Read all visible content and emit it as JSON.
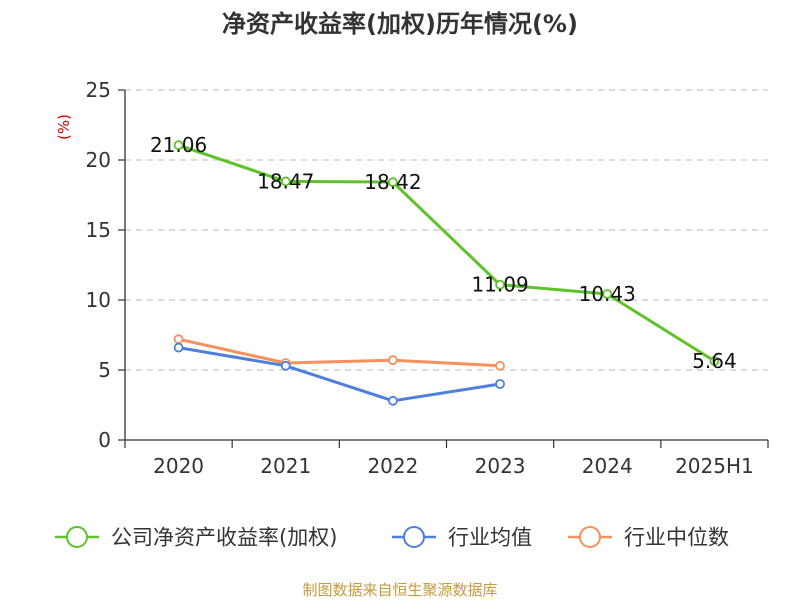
{
  "chart_data": {
    "type": "line",
    "title": "净资产收益率(加权)历年情况(%)",
    "ylabel": "(%)",
    "xlabel": "",
    "categories": [
      "2020",
      "2021",
      "2022",
      "2023",
      "2024",
      "2025H1"
    ],
    "ylim": [
      0,
      25
    ],
    "yticks": [
      0,
      5,
      10,
      15,
      20,
      25
    ],
    "grid": true,
    "legend_position": "bottom",
    "series": [
      {
        "name": "公司净资产收益率(加权)",
        "color": "#5ec22b",
        "values": [
          21.06,
          18.47,
          18.42,
          11.09,
          10.43,
          5.64
        ],
        "labels": [
          "21.06",
          "18.47",
          "18.42",
          "11.09",
          "10.43",
          "5.64"
        ]
      },
      {
        "name": "行业均值",
        "color": "#4f7fdc",
        "values": [
          6.6,
          5.3,
          2.8,
          4.0,
          null,
          null
        ]
      },
      {
        "name": "行业中位数",
        "color": "#f4915c",
        "values": [
          7.2,
          5.5,
          5.7,
          5.3,
          null,
          null
        ]
      }
    ]
  },
  "colors": {
    "axis": "#333333",
    "grid": "#c8c8c8",
    "unit": "#cc0000",
    "source": "#c79a3c"
  },
  "source": "制图数据来自恒生聚源数据库"
}
